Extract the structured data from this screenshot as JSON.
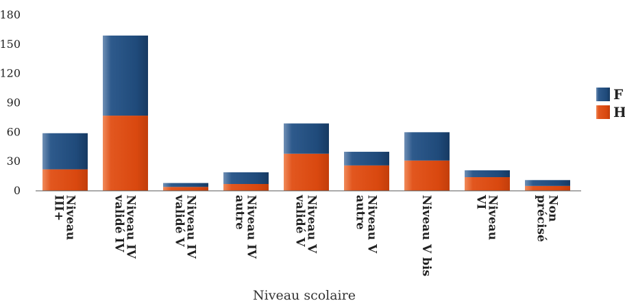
{
  "chart_data": {
    "type": "bar",
    "stacked": true,
    "title": "",
    "xlabel": "Niveau scolaire",
    "ylabel": "",
    "ylim": [
      0,
      180
    ],
    "yticks": [
      0,
      30,
      60,
      90,
      120,
      150,
      180
    ],
    "categories": [
      [
        "Niveau",
        "III+"
      ],
      [
        "Niveau IV",
        "validé IV"
      ],
      [
        "Niveau IV",
        "validé V"
      ],
      [
        "Niveau IV",
        "autre"
      ],
      [
        "Niveau V",
        "validé V"
      ],
      [
        "Niveau V",
        "autre"
      ],
      [
        "Niveau V bis"
      ],
      [
        "Niveau",
        "VI"
      ],
      [
        "Non",
        "précisé"
      ]
    ],
    "series": [
      {
        "name": "H",
        "color": "#d9480f",
        "values": [
          22,
          77,
          4,
          7,
          38,
          26,
          31,
          14,
          5
        ]
      },
      {
        "name": "F",
        "color": "#1f4a7a",
        "values": [
          37,
          82,
          4,
          12,
          31,
          14,
          29,
          7,
          6
        ]
      }
    ],
    "legend_order": [
      "F",
      "H"
    ],
    "legend_position": "right",
    "grid": false
  }
}
